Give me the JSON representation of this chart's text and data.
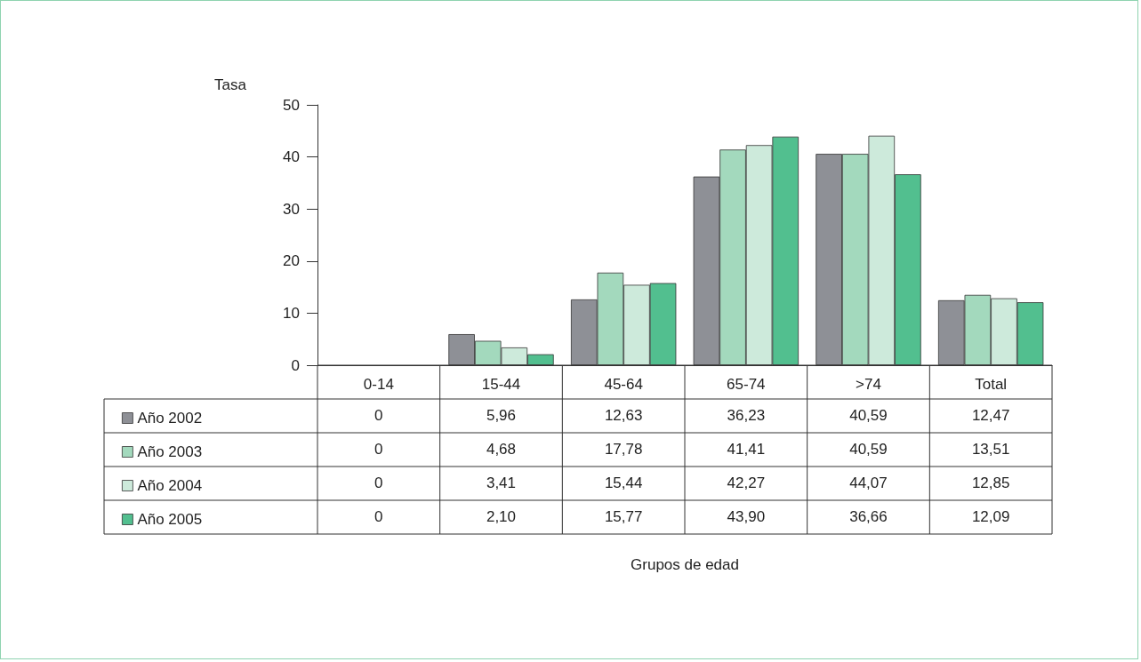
{
  "chart_data": {
    "type": "bar",
    "ylabel": "Tasa",
    "annotations": [
      "Grupos de edad"
    ],
    "categories": [
      "0-14",
      "15-44",
      "45-64",
      "65-74",
      ">74",
      "Total"
    ],
    "series": [
      {
        "name": "Año 2002",
        "color": "#8e9096",
        "values": [
          0,
          5.96,
          12.63,
          36.23,
          40.59,
          12.47
        ],
        "value_labels": [
          "0",
          "5,96",
          "12,63",
          "36,23",
          "40,59",
          "12,47"
        ]
      },
      {
        "name": "Año 2003",
        "color": "#a3d9bd",
        "values": [
          0,
          4.68,
          17.78,
          41.41,
          40.59,
          13.51
        ],
        "value_labels": [
          "0",
          "4,68",
          "17,78",
          "41,41",
          "40,59",
          "13,51"
        ]
      },
      {
        "name": "Año 2004",
        "color": "#cdeadb",
        "values": [
          0,
          3.41,
          15.44,
          42.27,
          44.07,
          12.85
        ],
        "value_labels": [
          "0",
          "3,41",
          "15,44",
          "42,27",
          "44,07",
          "12,85"
        ]
      },
      {
        "name": "Año 2005",
        "color": "#52bf8f",
        "values": [
          0,
          2.1,
          15.77,
          43.9,
          36.66,
          12.09
        ],
        "value_labels": [
          "0",
          "2,10",
          "15,77",
          "43,90",
          "36,66",
          "12,09"
        ]
      }
    ],
    "ylim": [
      0,
      50
    ],
    "yticks": [
      0,
      10,
      20,
      30,
      40,
      50
    ],
    "grid": false,
    "legend": "bottom left"
  }
}
